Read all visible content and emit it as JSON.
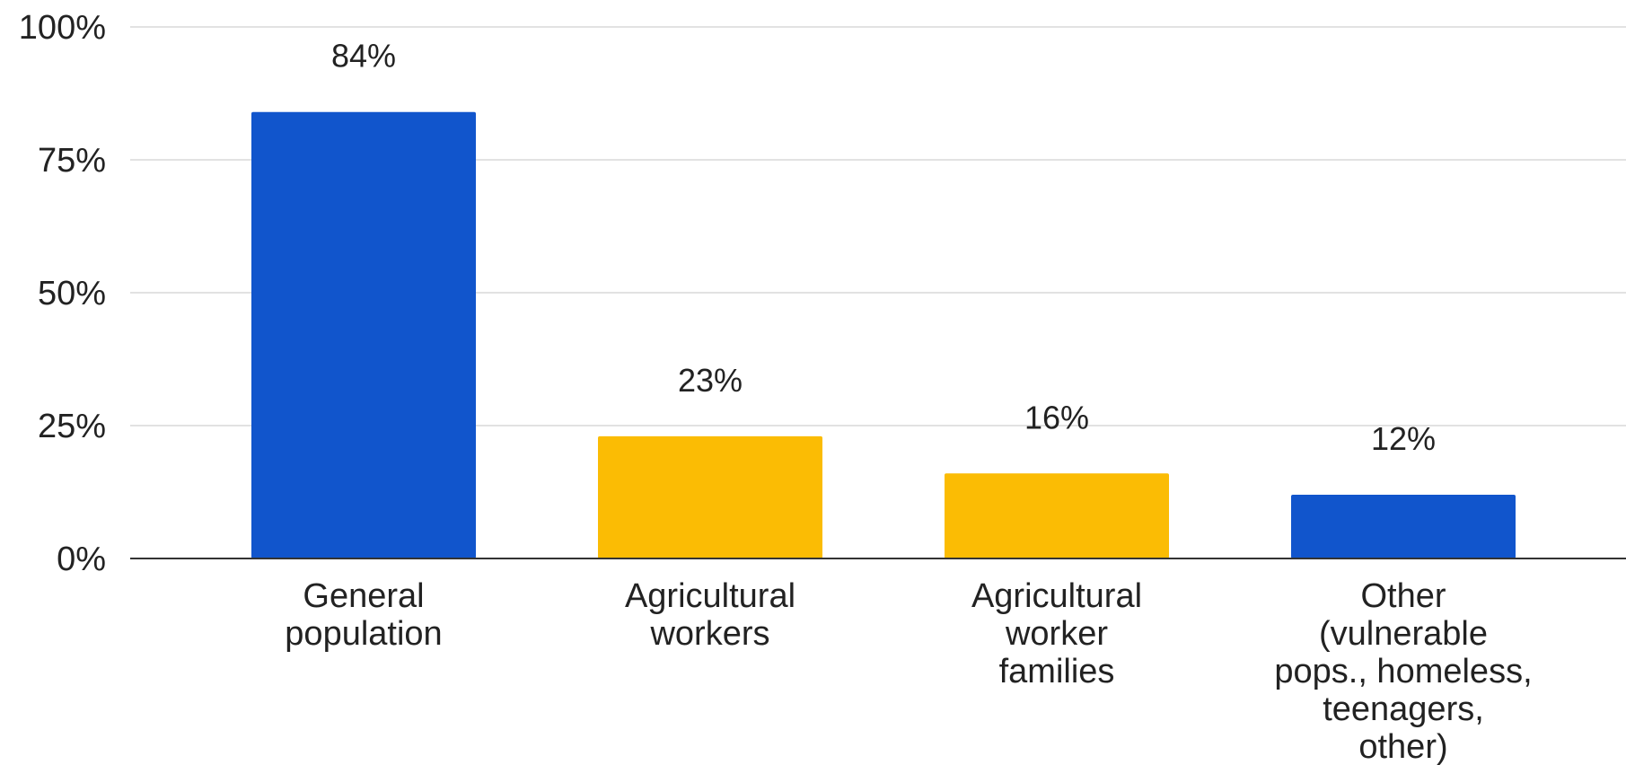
{
  "chart_data": {
    "type": "bar",
    "title": "",
    "xlabel": "",
    "ylabel": "",
    "ylim": [
      0,
      100
    ],
    "yticks": [
      0,
      25,
      50,
      75,
      100
    ],
    "ytick_labels": [
      "0%",
      "25%",
      "50%",
      "75%",
      "100%"
    ],
    "grid": true,
    "legend": "none",
    "categories": [
      "General population",
      "Agricultural workers",
      "Agricultural worker families",
      "Other (vulnerable pops., homeless, teenagers, other)"
    ],
    "category_lines": [
      [
        "General",
        "population"
      ],
      [
        "Agricultural",
        "workers"
      ],
      [
        "Agricultural",
        "worker",
        "families"
      ],
      [
        "Other",
        "(vulnerable",
        "pops., homeless,",
        "teenagers,",
        "other)"
      ]
    ],
    "values": [
      84,
      23,
      16,
      12
    ],
    "data_labels": [
      "84%",
      "23%",
      "16%",
      "12%"
    ],
    "bar_colors": [
      "#1155cc",
      "#fbbc04",
      "#fbbc04",
      "#1155cc"
    ]
  },
  "colors": {
    "grid": "#d9d9d9",
    "axis": "#333333",
    "text": "#222222"
  }
}
